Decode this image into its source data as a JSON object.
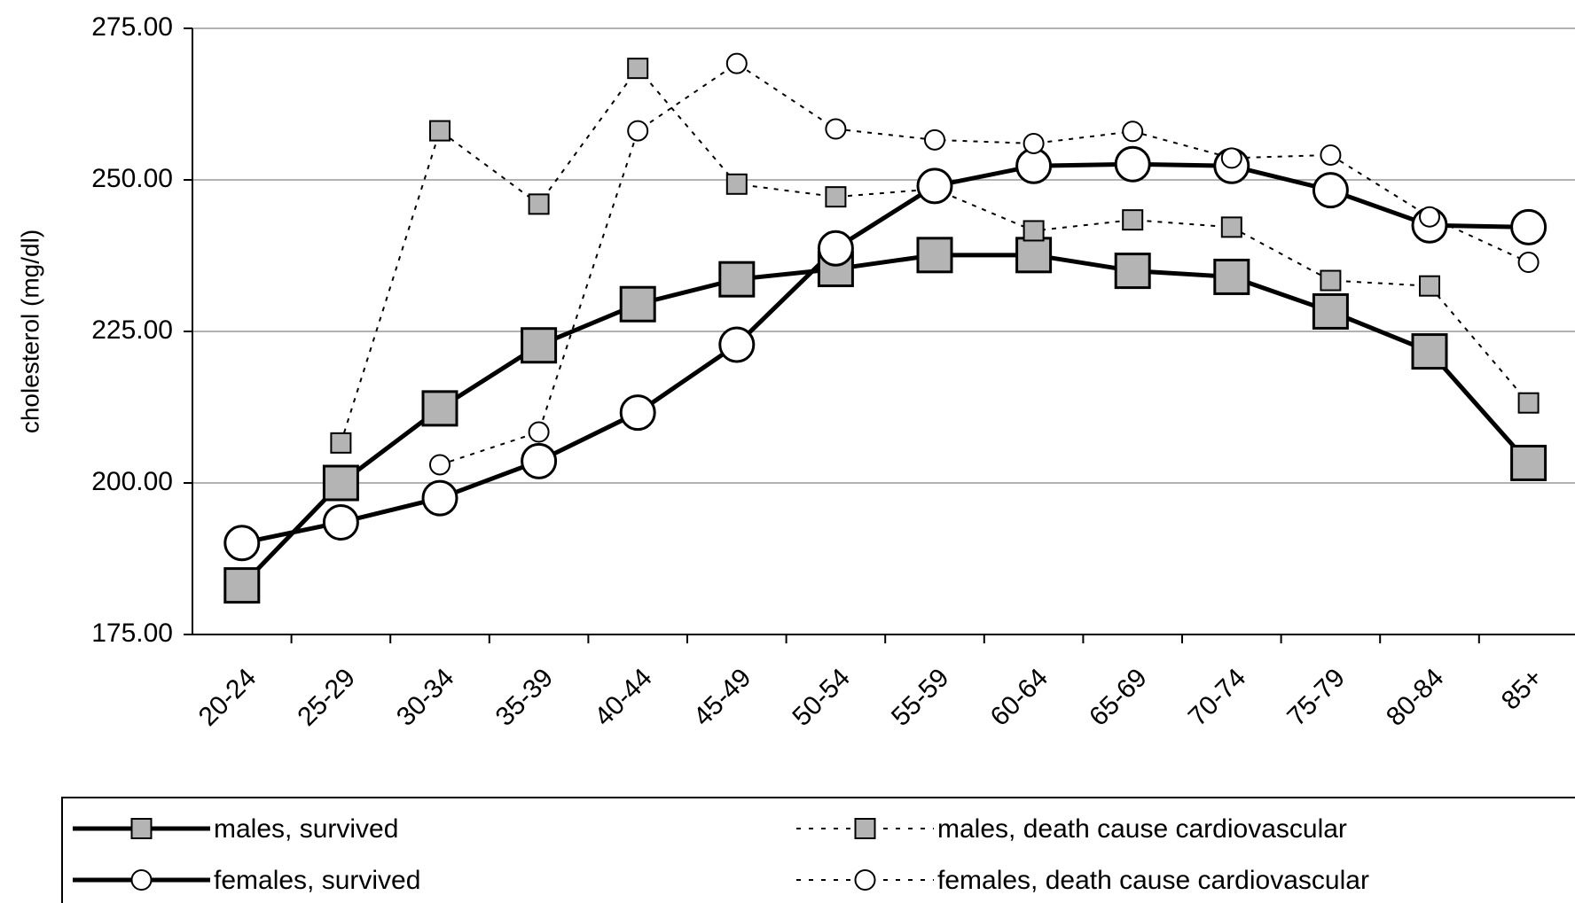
{
  "chart_data": {
    "type": "line",
    "y_label": "cholesterol (mg/dl)",
    "categories": [
      "20-24",
      "25-29",
      "30-34",
      "35-39",
      "40-44",
      "45-49",
      "50-54",
      "55-59",
      "60-64",
      "65-69",
      "70-74",
      "75-79",
      "80-84",
      "85+"
    ],
    "ylim": [
      175,
      275
    ],
    "yticks": [
      {
        "value": 175,
        "label": "175.00"
      },
      {
        "value": 200,
        "label": "200.00"
      },
      {
        "value": 225,
        "label": "225.00"
      },
      {
        "value": 250,
        "label": "250.00"
      },
      {
        "value": 275,
        "label": "275.00"
      }
    ],
    "grid": true,
    "series": [
      {
        "name": "males, survived",
        "color": "#000000",
        "marker": "square",
        "line_style": "solid",
        "values": [
          183.1,
          200,
          212.3,
          222.7,
          229.5,
          233.6,
          235.3,
          237.6,
          237.6,
          235,
          234,
          228.3,
          221.7,
          203.3
        ]
      },
      {
        "name": "males, death cause cardiovascular",
        "color": "#000000",
        "marker": "square",
        "line_style": "dotted",
        "values": [
          null,
          206.6,
          258.1,
          246,
          268.4,
          249.3,
          247.2,
          248.5,
          241.6,
          243.4,
          242.2,
          233.4,
          232.5,
          213.2
        ]
      },
      {
        "name": "females, survived",
        "color": "#000000",
        "marker": "circle",
        "line_style": "solid",
        "values": [
          190.1,
          193.5,
          197.5,
          203.6,
          211.6,
          222.8,
          238.7,
          249,
          252.3,
          252.6,
          252.3,
          248.3,
          242.5,
          242.2
        ]
      },
      {
        "name": "females, death cause cardiovascular",
        "color": "#000000",
        "marker": "circle",
        "line_style": "dotted",
        "values": [
          null,
          null,
          203,
          208.4,
          258.1,
          269.2,
          258.4,
          256.6,
          256,
          258,
          253.6,
          254.1,
          243.9,
          236.4
        ]
      }
    ]
  }
}
